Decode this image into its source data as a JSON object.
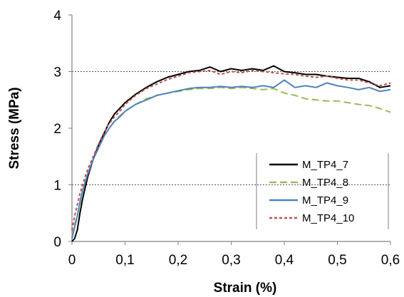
{
  "chart_data": {
    "type": "line",
    "xlabel": "Strain (%)",
    "ylabel": "Stress (MPa)",
    "xlim": [
      0,
      0.6
    ],
    "ylim": [
      0,
      4
    ],
    "x_ticks": [
      "0",
      "0,1",
      "0,2",
      "0,3",
      "0,4",
      "0,5",
      "0,6"
    ],
    "y_ticks": [
      "0",
      "1",
      "2",
      "3",
      "4"
    ],
    "gridlines_y": [
      1,
      3
    ],
    "legend_position": "bottom-right",
    "series": [
      {
        "name": "M_TP4_7",
        "color": "#000000",
        "dash": "solid",
        "x": [
          0,
          0.005,
          0.01,
          0.015,
          0.02,
          0.025,
          0.03,
          0.04,
          0.05,
          0.06,
          0.07,
          0.08,
          0.09,
          0.1,
          0.12,
          0.14,
          0.16,
          0.18,
          0.2,
          0.22,
          0.24,
          0.26,
          0.28,
          0.3,
          0.32,
          0.34,
          0.36,
          0.38,
          0.4,
          0.42,
          0.44,
          0.46,
          0.48,
          0.5,
          0.52,
          0.54,
          0.56,
          0.58,
          0.6
        ],
        "values": [
          0,
          0.05,
          0.2,
          0.5,
          0.75,
          0.95,
          1.15,
          1.45,
          1.7,
          1.9,
          2.1,
          2.25,
          2.35,
          2.45,
          2.6,
          2.72,
          2.82,
          2.9,
          2.95,
          3.0,
          3.02,
          3.08,
          3.0,
          3.05,
          3.02,
          3.05,
          3.02,
          3.1,
          3.0,
          2.98,
          2.95,
          2.95,
          2.92,
          2.9,
          2.88,
          2.88,
          2.82,
          2.72,
          2.75
        ]
      },
      {
        "name": "M_TP4_8",
        "color": "#9bbb59",
        "dash": "long-dash",
        "x": [
          0,
          0.005,
          0.01,
          0.015,
          0.02,
          0.025,
          0.03,
          0.04,
          0.05,
          0.06,
          0.07,
          0.08,
          0.09,
          0.1,
          0.12,
          0.14,
          0.16,
          0.18,
          0.2,
          0.22,
          0.24,
          0.26,
          0.28,
          0.3,
          0.32,
          0.34,
          0.36,
          0.38,
          0.4,
          0.42,
          0.44,
          0.46,
          0.48,
          0.5,
          0.52,
          0.54,
          0.56,
          0.58,
          0.6
        ],
        "values": [
          0.1,
          0.3,
          0.45,
          0.65,
          0.85,
          1.05,
          1.2,
          1.45,
          1.65,
          1.85,
          2.0,
          2.12,
          2.22,
          2.3,
          2.42,
          2.52,
          2.58,
          2.62,
          2.65,
          2.68,
          2.7,
          2.7,
          2.72,
          2.7,
          2.72,
          2.7,
          2.68,
          2.7,
          2.62,
          2.58,
          2.52,
          2.5,
          2.48,
          2.48,
          2.45,
          2.42,
          2.4,
          2.35,
          2.28
        ]
      },
      {
        "name": "M_TP4_9",
        "color": "#4f81bd",
        "dash": "solid",
        "x": [
          0,
          0.005,
          0.01,
          0.015,
          0.02,
          0.025,
          0.03,
          0.04,
          0.05,
          0.06,
          0.07,
          0.08,
          0.09,
          0.1,
          0.12,
          0.14,
          0.16,
          0.18,
          0.2,
          0.22,
          0.24,
          0.26,
          0.28,
          0.3,
          0.32,
          0.34,
          0.36,
          0.38,
          0.4,
          0.42,
          0.44,
          0.46,
          0.48,
          0.5,
          0.52,
          0.54,
          0.56,
          0.58,
          0.6
        ],
        "values": [
          0.05,
          0.25,
          0.45,
          0.7,
          0.9,
          1.05,
          1.2,
          1.45,
          1.65,
          1.85,
          2.0,
          2.12,
          2.2,
          2.3,
          2.42,
          2.5,
          2.58,
          2.62,
          2.66,
          2.7,
          2.72,
          2.72,
          2.74,
          2.72,
          2.74,
          2.72,
          2.75,
          2.72,
          2.85,
          2.72,
          2.75,
          2.72,
          2.8,
          2.75,
          2.72,
          2.68,
          2.72,
          2.65,
          2.68
        ]
      },
      {
        "name": "M_TP4_10",
        "color": "#c0504d",
        "dash": "short-dash",
        "x": [
          0,
          0.005,
          0.01,
          0.015,
          0.02,
          0.025,
          0.03,
          0.04,
          0.05,
          0.06,
          0.07,
          0.08,
          0.09,
          0.1,
          0.12,
          0.14,
          0.16,
          0.18,
          0.2,
          0.22,
          0.24,
          0.26,
          0.28,
          0.3,
          0.32,
          0.34,
          0.36,
          0.38,
          0.4,
          0.42,
          0.44,
          0.46,
          0.48,
          0.5,
          0.52,
          0.54,
          0.56,
          0.58,
          0.6
        ],
        "values": [
          0.2,
          0.45,
          0.65,
          0.85,
          1.0,
          1.15,
          1.28,
          1.5,
          1.72,
          1.92,
          2.08,
          2.2,
          2.3,
          2.42,
          2.58,
          2.7,
          2.78,
          2.86,
          2.92,
          2.98,
          3.0,
          3.02,
          2.95,
          3.0,
          2.98,
          3.02,
          3.0,
          2.98,
          2.96,
          2.95,
          2.92,
          2.9,
          2.92,
          2.88,
          2.85,
          2.85,
          2.8,
          2.75,
          2.8
        ]
      }
    ]
  }
}
